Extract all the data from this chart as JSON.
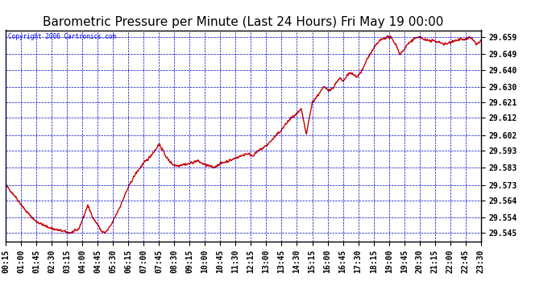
{
  "title": "Barometric Pressure per Minute (Last 24 Hours) Fri May 19 00:00",
  "copyright": "Copyright 2006 Cartronics.com",
  "background_color": "#ffffff",
  "plot_bg_color": "#ffffff",
  "line_color": "#cc0000",
  "grid_color": "#0000cc",
  "yticks": [
    29.545,
    29.554,
    29.564,
    29.573,
    29.583,
    29.593,
    29.602,
    29.612,
    29.621,
    29.63,
    29.64,
    29.649,
    29.659
  ],
  "ylim": [
    29.54,
    29.663
  ],
  "x_labels": [
    "00:15",
    "01:00",
    "01:45",
    "02:30",
    "03:15",
    "04:00",
    "04:45",
    "05:30",
    "06:15",
    "07:00",
    "07:45",
    "08:30",
    "09:15",
    "10:00",
    "10:45",
    "11:30",
    "12:15",
    "13:00",
    "13:45",
    "14:30",
    "15:15",
    "16:00",
    "16:45",
    "17:30",
    "18:15",
    "19:00",
    "19:45",
    "20:30",
    "21:15",
    "22:00",
    "22:45",
    "23:30"
  ],
  "title_fontsize": 11,
  "tick_fontsize": 7,
  "line_width": 1.0,
  "keypoints": [
    [
      0,
      29.573
    ],
    [
      30,
      29.566
    ],
    [
      60,
      29.558
    ],
    [
      90,
      29.552
    ],
    [
      120,
      29.549
    ],
    [
      150,
      29.547
    ],
    [
      175,
      29.546
    ],
    [
      195,
      29.545
    ],
    [
      220,
      29.547
    ],
    [
      235,
      29.554
    ],
    [
      248,
      29.561
    ],
    [
      255,
      29.558
    ],
    [
      262,
      29.555
    ],
    [
      270,
      29.552
    ],
    [
      278,
      29.55
    ],
    [
      290,
      29.546
    ],
    [
      300,
      29.545
    ],
    [
      310,
      29.547
    ],
    [
      320,
      29.55
    ],
    [
      335,
      29.556
    ],
    [
      350,
      29.562
    ],
    [
      365,
      29.569
    ],
    [
      380,
      29.575
    ],
    [
      395,
      29.58
    ],
    [
      415,
      29.585
    ],
    [
      435,
      29.589
    ],
    [
      455,
      29.594
    ],
    [
      465,
      29.597
    ],
    [
      475,
      29.593
    ],
    [
      490,
      29.588
    ],
    [
      505,
      29.585
    ],
    [
      520,
      29.584
    ],
    [
      535,
      29.585
    ],
    [
      550,
      29.585
    ],
    [
      565,
      29.586
    ],
    [
      580,
      29.587
    ],
    [
      600,
      29.585
    ],
    [
      615,
      29.584
    ],
    [
      630,
      29.583
    ],
    [
      645,
      29.585
    ],
    [
      660,
      29.586
    ],
    [
      675,
      29.587
    ],
    [
      690,
      29.588
    ],
    [
      700,
      29.589
    ],
    [
      715,
      29.59
    ],
    [
      725,
      29.591
    ],
    [
      735,
      29.591
    ],
    [
      748,
      29.59
    ],
    [
      760,
      29.592
    ],
    [
      775,
      29.594
    ],
    [
      790,
      29.596
    ],
    [
      805,
      29.599
    ],
    [
      820,
      29.602
    ],
    [
      835,
      29.605
    ],
    [
      850,
      29.609
    ],
    [
      865,
      29.612
    ],
    [
      880,
      29.614
    ],
    [
      895,
      29.617
    ],
    [
      910,
      29.602
    ],
    [
      918,
      29.611
    ],
    [
      928,
      29.621
    ],
    [
      940,
      29.624
    ],
    [
      952,
      29.627
    ],
    [
      963,
      29.63
    ],
    [
      972,
      29.629
    ],
    [
      982,
      29.628
    ],
    [
      993,
      29.63
    ],
    [
      1003,
      29.633
    ],
    [
      1013,
      29.635
    ],
    [
      1023,
      29.633
    ],
    [
      1033,
      29.637
    ],
    [
      1043,
      29.638
    ],
    [
      1053,
      29.637
    ],
    [
      1063,
      29.636
    ],
    [
      1073,
      29.638
    ],
    [
      1083,
      29.641
    ],
    [
      1093,
      29.646
    ],
    [
      1103,
      29.649
    ],
    [
      1113,
      29.652
    ],
    [
      1123,
      29.655
    ],
    [
      1133,
      29.657
    ],
    [
      1143,
      29.658
    ],
    [
      1153,
      29.659
    ],
    [
      1163,
      29.659
    ],
    [
      1173,
      29.657
    ],
    [
      1183,
      29.654
    ],
    [
      1193,
      29.649
    ],
    [
      1203,
      29.651
    ],
    [
      1213,
      29.654
    ],
    [
      1223,
      29.656
    ],
    [
      1233,
      29.657
    ],
    [
      1243,
      29.659
    ],
    [
      1253,
      29.659
    ],
    [
      1263,
      29.658
    ],
    [
      1275,
      29.657
    ],
    [
      1285,
      29.657
    ],
    [
      1295,
      29.657
    ],
    [
      1305,
      29.656
    ],
    [
      1315,
      29.656
    ],
    [
      1325,
      29.655
    ],
    [
      1335,
      29.655
    ],
    [
      1345,
      29.656
    ],
    [
      1355,
      29.657
    ],
    [
      1365,
      29.657
    ],
    [
      1375,
      29.658
    ],
    [
      1385,
      29.657
    ],
    [
      1395,
      29.658
    ],
    [
      1405,
      29.659
    ],
    [
      1415,
      29.657
    ],
    [
      1425,
      29.655
    ],
    [
      1435,
      29.656
    ],
    [
      1439,
      29.657
    ]
  ]
}
